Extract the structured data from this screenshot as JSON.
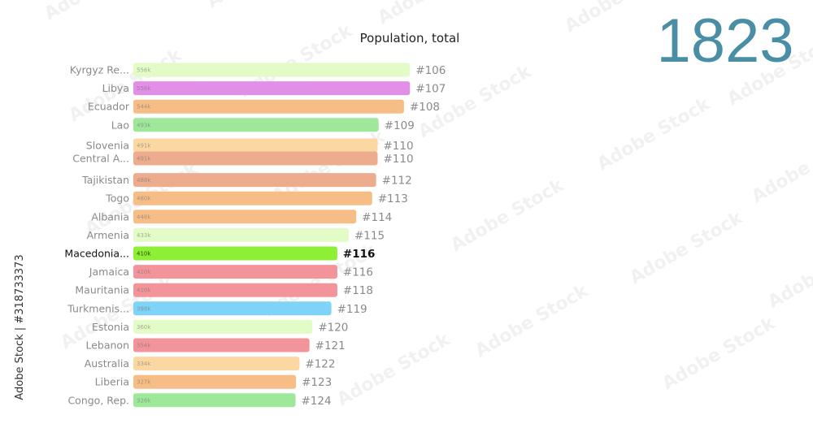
{
  "chart_data": {
    "type": "bar",
    "title": "Population, total",
    "year": "1823",
    "highlight": "Macedonia...",
    "rows": [
      {
        "name": "Kyrgyz Re...",
        "value": 556,
        "value_label": "556k",
        "rank": "#106",
        "color": "#e3fbc6"
      },
      {
        "name": "Libya",
        "value": 556,
        "value_label": "556k",
        "rank": "#107",
        "color": "#e28fe8"
      },
      {
        "name": "Ecuador",
        "value": 544,
        "value_label": "544k",
        "rank": "#108",
        "color": "#f7bd86"
      },
      {
        "name": "Lao",
        "value": 493,
        "value_label": "493k",
        "rank": "#109",
        "color": "#9ee89a"
      },
      {
        "name": "Slovenia",
        "value": 491,
        "value_label": "491k",
        "rank": "#110",
        "color": "#fbd8a2"
      },
      {
        "name": "Central A...",
        "value": 491,
        "value_label": "491k",
        "rank": "#110",
        "color": "#eeac8e"
      },
      {
        "name": "Tajikistan",
        "value": 488,
        "value_label": "488k",
        "rank": "#112",
        "color": "#eeac8e"
      },
      {
        "name": "Togo",
        "value": 480,
        "value_label": "480k",
        "rank": "#113",
        "color": "#f7bd86"
      },
      {
        "name": "Albania",
        "value": 448,
        "value_label": "448k",
        "rank": "#114",
        "color": "#f7bd86"
      },
      {
        "name": "Armenia",
        "value": 433,
        "value_label": "433k",
        "rank": "#115",
        "color": "#e3fbc6"
      },
      {
        "name": "Macedonia...",
        "value": 410,
        "value_label": "410k",
        "rank": "#116",
        "color": "#8ef035"
      },
      {
        "name": "Jamaica",
        "value": 410,
        "value_label": "410k",
        "rank": "#116",
        "color": "#f3949a"
      },
      {
        "name": "Mauritania",
        "value": 410,
        "value_label": "410k",
        "rank": "#118",
        "color": "#f3949a"
      },
      {
        "name": "Turkmenis...",
        "value": 398,
        "value_label": "398k",
        "rank": "#119",
        "color": "#7fd3f7"
      },
      {
        "name": "Estonia",
        "value": 360,
        "value_label": "360k",
        "rank": "#120",
        "color": "#e3fbc6"
      },
      {
        "name": "Lebanon",
        "value": 354,
        "value_label": "354k",
        "rank": "#121",
        "color": "#f3949a"
      },
      {
        "name": "Australia",
        "value": 334,
        "value_label": "334k",
        "rank": "#122",
        "color": "#fbd8a2"
      },
      {
        "name": "Liberia",
        "value": 327,
        "value_label": "327k",
        "rank": "#123",
        "color": "#f7bd86"
      },
      {
        "name": "Congo, Rep.",
        "value": 326,
        "value_label": "326k",
        "rank": "#124",
        "color": "#9ee89a"
      }
    ]
  },
  "side_text": "Adobe Stock | #318733373",
  "watermark_text": "Adobe Stock"
}
